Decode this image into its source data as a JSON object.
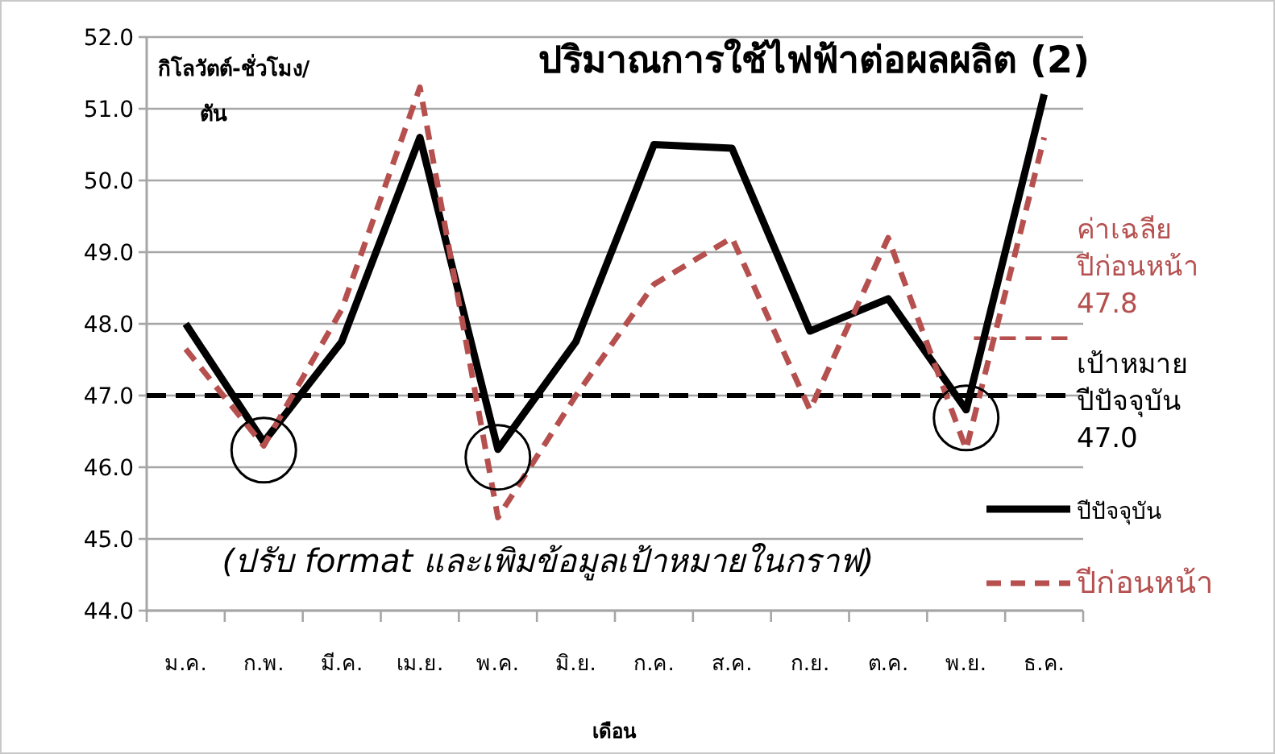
{
  "chart_data": {
    "type": "line",
    "title": "ปริมาณการใช้ไฟฟ้าต่อผลผลิต (2)",
    "ylabel": "กิโลวัตต์-ชั่วโมง/ตัน",
    "xlabel": "เดือน",
    "annotations": [
      "(ปรับ format และเพิมข้อมูลเป้าหมายในกราฟ)"
    ],
    "categories": [
      "ม.ค.",
      "ก.พ.",
      "มี.ค.",
      "เม.ย.",
      "พ.ค.",
      "มิ.ย.",
      "ก.ค.",
      "ส.ค.",
      "ก.ย.",
      "ต.ค.",
      "พ.ย.",
      "ธ.ค."
    ],
    "series": [
      {
        "name": "ปีปัจจุบัน",
        "color": "#000000",
        "line_style": "solid",
        "values": [
          48.0,
          46.35,
          47.75,
          50.6,
          46.25,
          47.75,
          50.5,
          50.45,
          47.9,
          48.35,
          46.8,
          51.2
        ]
      },
      {
        "name": "ปีก่อนหน้า",
        "color": "#b5504f",
        "line_style": "dashed",
        "values": [
          47.65,
          46.3,
          48.2,
          51.3,
          45.3,
          47.0,
          48.55,
          49.2,
          46.8,
          49.2,
          46.25,
          50.6
        ]
      }
    ],
    "ref_lines": [
      {
        "axis": "y",
        "value": 47.0,
        "label": "เป้าหมาย ปีปัจจุบัน 47.0",
        "color": "#000000",
        "line_style": "dashed"
      },
      {
        "axis": "y",
        "value": 47.8,
        "label": "ค่าเฉลีย ปีก่อนหน้า 47.8",
        "color": "#b5504f",
        "line_style": "dashed"
      }
    ],
    "ylim": [
      44,
      52
    ],
    "yticks": [
      {
        "value": 44,
        "label": "44.0"
      },
      {
        "value": 45,
        "label": "45.0"
      },
      {
        "value": 46,
        "label": "46.0"
      },
      {
        "value": 47,
        "label": "47.0"
      },
      {
        "value": 48,
        "label": "48.0"
      },
      {
        "value": 49,
        "label": "49.0"
      },
      {
        "value": 50,
        "label": "50.0"
      },
      {
        "value": 51,
        "label": "51.0"
      },
      {
        "value": 52,
        "label": "52.0"
      }
    ],
    "grid": "y",
    "legend": "bottom right",
    "marker": "none"
  }
}
